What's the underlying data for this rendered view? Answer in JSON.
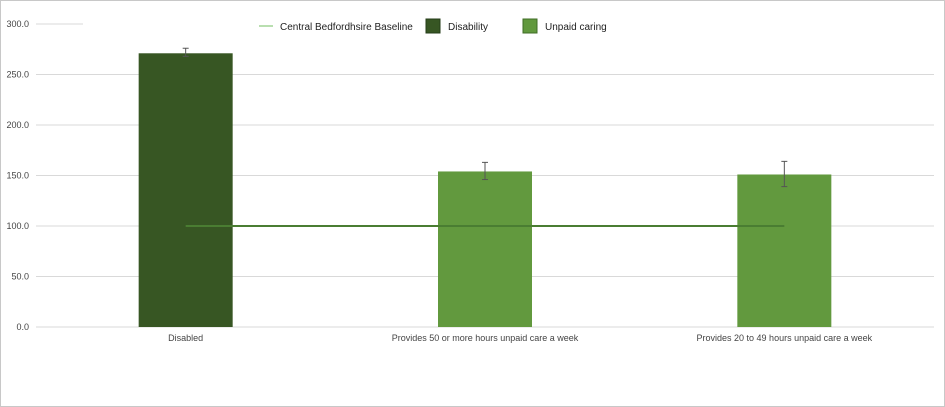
{
  "chart_data": {
    "type": "bar",
    "categories": [
      "Disabled",
      "Provides 50 or more hours unpaid care a week",
      "Provides 20 to 49 hours unpaid care a week"
    ],
    "values": [
      271,
      154,
      151
    ],
    "error_low": [
      268,
      146,
      139
    ],
    "error_high": [
      276,
      163,
      164
    ],
    "bar_series": [
      "Disability",
      "Unpaid caring",
      "Unpaid caring"
    ],
    "baseline": {
      "name": "Central Bedfordhsire Baseline",
      "value": 100
    },
    "legend": [
      "Central Bedfordhsire Baseline",
      "Disability",
      "Unpaid caring"
    ],
    "ylim": [
      0,
      300
    ],
    "yticks": [
      "0.0",
      "50.0",
      "100.0",
      "150.0",
      "200.0",
      "250.0",
      "300.0"
    ],
    "grid": true,
    "legend_position": "top",
    "colors": {
      "baseline": "#b9dfb0",
      "baseline_line": "#4a7d32",
      "Disability": "#375623",
      "Unpaid caring": "#62993e"
    }
  }
}
